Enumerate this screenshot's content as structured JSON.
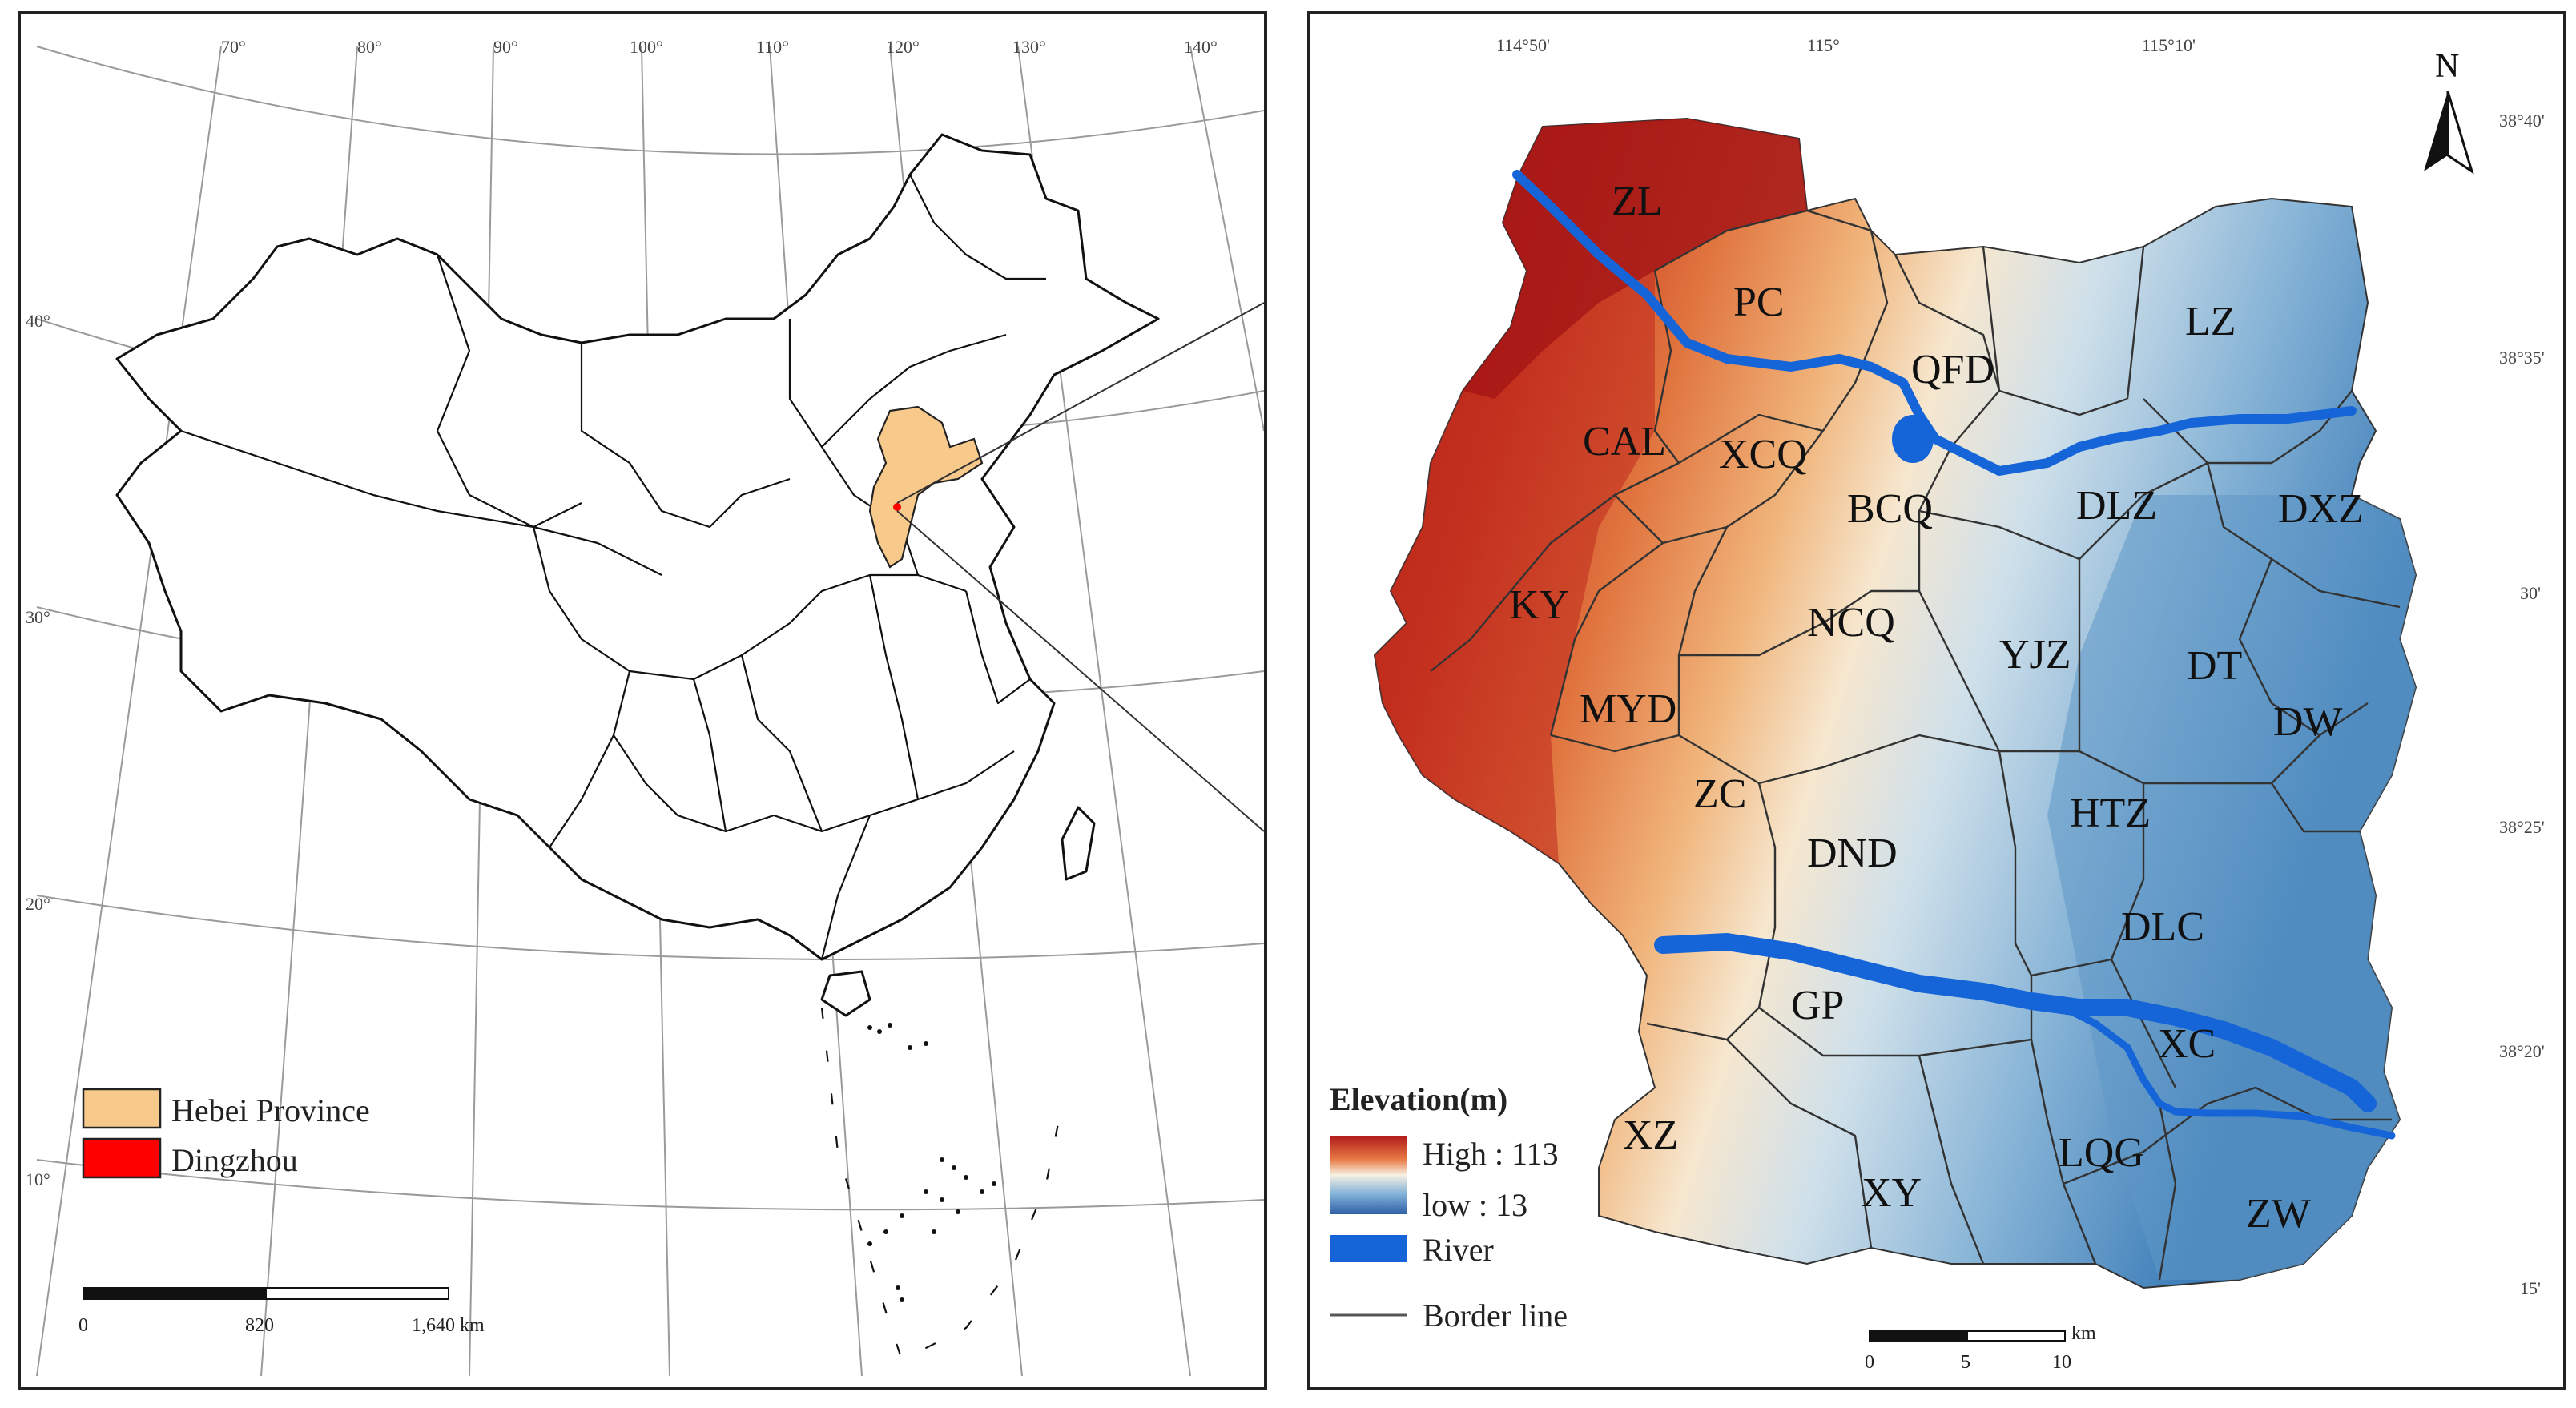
{
  "overview_map": {
    "longitude_labels": [
      "70°",
      "80°",
      "90°",
      "100°",
      "110°",
      "120°",
      "130°",
      "140°"
    ],
    "latitude_labels": [
      "40°",
      "30°",
      "20°",
      "10°"
    ],
    "legend": [
      {
        "label": "Hebei Province",
        "color": "#f7c98a"
      },
      {
        "label": "Dingzhou",
        "color": "#ff0000"
      }
    ],
    "scale_bar": {
      "labels": [
        "0",
        "820",
        "1,640 km"
      ]
    }
  },
  "detail_map": {
    "top_longitude_labels": [
      "114°50'",
      "115°",
      "115°10'"
    ],
    "right_latitude_labels": [
      "38°40'",
      "38°35'",
      "30'",
      "38°25'",
      "38°20'",
      "15'"
    ],
    "north_arrow": "N",
    "towns": [
      "ZL",
      "PC",
      "QFD",
      "LZ",
      "CAL",
      "XCQ",
      "BCQ",
      "DLZ",
      "DXZ",
      "KY",
      "NCQ",
      "YJZ",
      "DT",
      "MYD",
      "DW",
      "ZC",
      "HTZ",
      "DND",
      "DLC",
      "GP",
      "XC",
      "XZ",
      "XY",
      "LQG",
      "ZW"
    ],
    "legend": {
      "title": "Elevation(m)",
      "high": "High : 113",
      "low": "low : 13",
      "river": "River",
      "border": "Border line"
    },
    "colors": {
      "high": "#b01a1a",
      "mid": "#f6f0e2",
      "low": "#2f6fae",
      "river": "#1565d8"
    },
    "scale_bar": {
      "labels": [
        "0",
        "5",
        "10"
      ],
      "unit": "km"
    }
  }
}
